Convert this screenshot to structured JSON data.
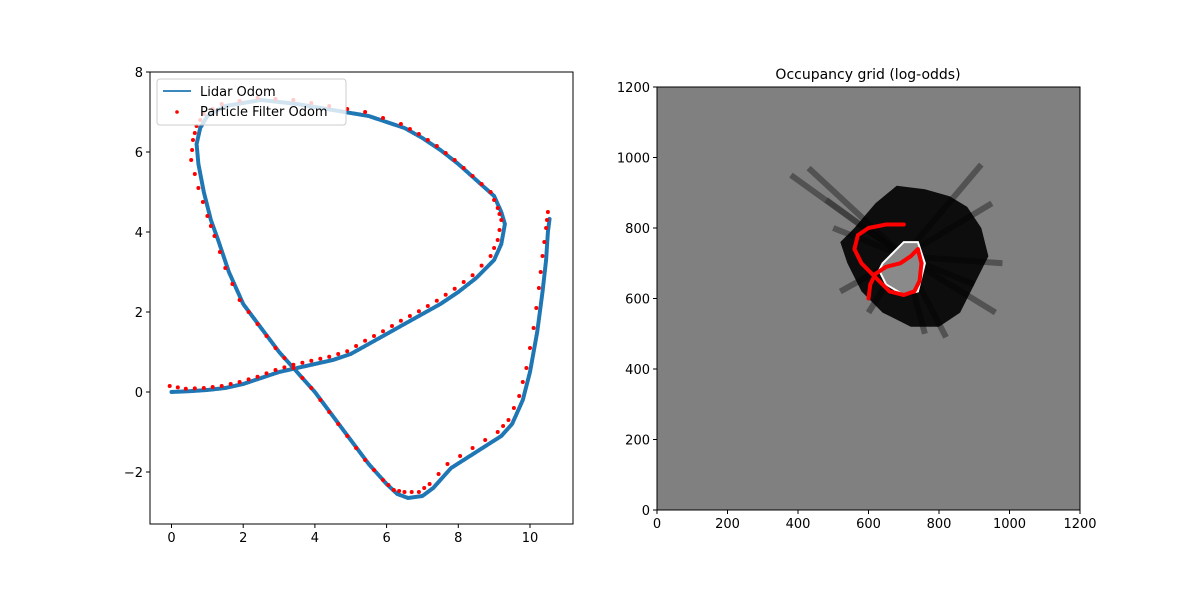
{
  "chart_data": [
    {
      "type": "line",
      "title": "",
      "xlabel": "",
      "ylabel": "",
      "xlim": [
        -0.6,
        11.2
      ],
      "ylim": [
        -3.3,
        8.0
      ],
      "xticks": [
        0,
        2,
        4,
        6,
        8,
        10
      ],
      "yticks": [
        -2,
        0,
        2,
        4,
        6,
        8
      ],
      "xtick_labels": [
        "0",
        "2",
        "4",
        "6",
        "8",
        "10"
      ],
      "ytick_labels": [
        "−2",
        "0",
        "2",
        "4",
        "6",
        "8"
      ],
      "grid": false,
      "legend_position": "top-left",
      "series": [
        {
          "name": "Lidar Odom",
          "kind": "line",
          "color": "#1f77b4",
          "x": [
            0.0,
            0.5,
            1.0,
            1.5,
            2.0,
            2.5,
            3.0,
            3.5,
            4.0,
            4.5,
            5.0,
            5.5,
            6.0,
            6.5,
            7.0,
            7.5,
            8.0,
            8.5,
            9.0,
            9.2,
            9.3,
            9.2,
            9.0,
            8.5,
            8.0,
            7.5,
            7.0,
            6.5,
            5.5,
            4.5,
            3.5,
            2.5,
            1.5,
            1.0,
            0.8,
            0.7,
            0.75,
            0.9,
            1.1,
            1.3,
            1.6,
            2.0,
            2.5,
            3.0,
            3.5,
            4.0,
            4.5,
            5.0,
            5.5,
            6.0,
            6.3,
            6.6,
            7.0,
            7.3,
            7.8,
            8.5,
            9.2,
            9.5,
            9.8,
            10.0,
            10.2,
            10.35,
            10.45,
            10.5,
            10.55
          ],
          "y": [
            0.0,
            0.02,
            0.05,
            0.1,
            0.2,
            0.35,
            0.5,
            0.6,
            0.7,
            0.8,
            0.95,
            1.2,
            1.45,
            1.7,
            1.95,
            2.2,
            2.5,
            2.85,
            3.3,
            3.7,
            4.2,
            4.5,
            4.9,
            5.3,
            5.7,
            6.05,
            6.35,
            6.6,
            6.9,
            7.05,
            7.2,
            7.3,
            7.15,
            6.9,
            6.6,
            6.2,
            5.7,
            5.0,
            4.3,
            3.8,
            3.0,
            2.2,
            1.6,
            1.0,
            0.5,
            0.0,
            -0.6,
            -1.2,
            -1.8,
            -2.3,
            -2.55,
            -2.65,
            -2.6,
            -2.4,
            -1.9,
            -1.5,
            -1.1,
            -0.8,
            -0.2,
            0.5,
            1.5,
            2.5,
            3.3,
            4.0,
            4.35
          ]
        },
        {
          "name": "Particle Filter Odom",
          "kind": "scatter",
          "color": "#ff0000",
          "x": [
            -0.05,
            0.4,
            0.9,
            1.4,
            1.9,
            2.4,
            2.9,
            3.4,
            3.9,
            4.4,
            4.9,
            5.4,
            5.9,
            6.4,
            6.9,
            7.4,
            7.9,
            8.4,
            8.9,
            9.1,
            9.2,
            9.1,
            8.9,
            8.4,
            7.9,
            7.4,
            6.9,
            6.4,
            5.4,
            4.4,
            3.4,
            2.4,
            1.4,
            0.9,
            0.7,
            0.6,
            0.55,
            0.75,
            1.0,
            1.2,
            1.5,
            1.9,
            2.4,
            2.9,
            3.4,
            3.9,
            4.4,
            4.9,
            5.4,
            5.9,
            6.2,
            6.5,
            6.9,
            7.2,
            7.7,
            8.4,
            9.1,
            9.4,
            9.7,
            9.9,
            10.1,
            10.25,
            10.35,
            10.45,
            10.5
          ],
          "y": [
            0.15,
            0.08,
            0.1,
            0.15,
            0.25,
            0.38,
            0.55,
            0.68,
            0.78,
            0.88,
            1.02,
            1.28,
            1.52,
            1.78,
            2.02,
            2.28,
            2.58,
            2.92,
            3.4,
            3.8,
            4.3,
            4.6,
            5.0,
            5.4,
            5.8,
            6.15,
            6.45,
            6.7,
            7.0,
            7.15,
            7.3,
            7.35,
            7.2,
            6.95,
            6.65,
            6.3,
            5.8,
            5.1,
            4.4,
            3.9,
            3.1,
            2.3,
            1.7,
            1.1,
            0.6,
            0.1,
            -0.5,
            -1.1,
            -1.7,
            -2.2,
            -2.45,
            -2.5,
            -2.5,
            -2.3,
            -1.8,
            -1.4,
            -1.0,
            -0.7,
            -0.1,
            0.6,
            1.6,
            2.6,
            3.4,
            4.1,
            4.5
          ]
        }
      ]
    },
    {
      "type": "heatmap",
      "title": "Occupancy grid (log-odds)",
      "xlabel": "",
      "ylabel": "",
      "xlim": [
        0,
        1200
      ],
      "ylim": [
        0,
        1200
      ],
      "xticks": [
        0,
        200,
        400,
        600,
        800,
        1000,
        1200
      ],
      "yticks": [
        0,
        200,
        400,
        600,
        800,
        1000,
        1200
      ],
      "xtick_labels": [
        "0",
        "200",
        "400",
        "600",
        "800",
        "1000",
        "1200"
      ],
      "ytick_labels": [
        "0",
        "200",
        "400",
        "600",
        "800",
        "1000",
        "1200"
      ],
      "background_color": "#808080",
      "occupied_color": "#000000",
      "free_color": "#ffffff",
      "path_color": "#ff0000",
      "map_region": {
        "x": [
          560,
          620,
          680,
          760,
          830,
          880,
          920,
          940,
          900,
          860,
          800,
          720,
          640,
          580,
          540,
          520
        ],
        "y": [
          800,
          870,
          920,
          910,
          890,
          860,
          800,
          720,
          640,
          560,
          520,
          520,
          560,
          620,
          700,
          760
        ]
      },
      "free_region": {
        "x": [
          640,
          700,
          740,
          760,
          740,
          700,
          650,
          630
        ],
        "y": [
          700,
          760,
          760,
          700,
          620,
          610,
          640,
          680
        ]
      },
      "robot_path": {
        "x": [
          600,
          605,
          620,
          650,
          690,
          720,
          740,
          750,
          745,
          730,
          700,
          660,
          620,
          580,
          560,
          570,
          600,
          650,
          700
        ],
        "y": [
          600,
          640,
          670,
          690,
          700,
          720,
          740,
          700,
          650,
          620,
          610,
          620,
          660,
          700,
          740,
          780,
          800,
          810,
          810
        ]
      }
    }
  ]
}
